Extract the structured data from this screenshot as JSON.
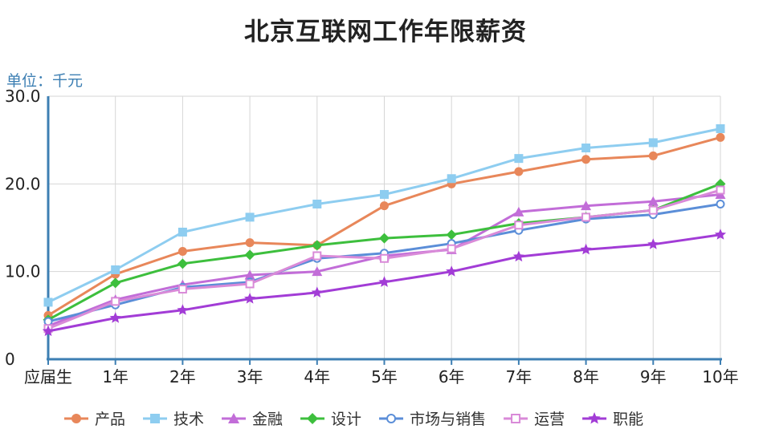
{
  "chart_data": {
    "type": "line",
    "title": "北京互联网工作年限薪资",
    "unit_label": "单位：千元",
    "categories": [
      "应届生",
      "1年",
      "2年",
      "3年",
      "4年",
      "5年",
      "6年",
      "7年",
      "8年",
      "9年",
      "10年"
    ],
    "y_ticks": [
      "0",
      "10.0",
      "20.0",
      "30.0"
    ],
    "ylim": [
      0,
      30
    ],
    "grid": true,
    "legend_position": "bottom",
    "series": [
      {
        "name": "产品",
        "color": "#e8875a",
        "marker": "circle",
        "values": [
          5.0,
          9.7,
          12.3,
          13.3,
          13.0,
          17.5,
          20.0,
          21.4,
          22.8,
          23.2,
          25.3
        ]
      },
      {
        "name": "技术",
        "color": "#8ecdf0",
        "marker": "square",
        "values": [
          6.5,
          10.2,
          14.5,
          16.2,
          17.7,
          18.8,
          20.6,
          22.9,
          24.1,
          24.7,
          26.3
        ]
      },
      {
        "name": "金融",
        "color": "#c26dd8",
        "marker": "triangle",
        "values": [
          3.8,
          6.8,
          8.5,
          9.6,
          10.0,
          11.8,
          12.5,
          16.8,
          17.5,
          18.0,
          18.8
        ]
      },
      {
        "name": "设计",
        "color": "#3dbf3d",
        "marker": "diamond",
        "values": [
          4.5,
          8.7,
          10.9,
          11.9,
          13.0,
          13.8,
          14.2,
          15.5,
          16.2,
          17.0,
          20.0
        ]
      },
      {
        "name": "市场与销售",
        "color": "#5b8ed8",
        "marker": "circle-open",
        "values": [
          4.3,
          6.2,
          8.2,
          8.8,
          11.5,
          12.1,
          13.2,
          14.7,
          16.0,
          16.5,
          17.7
        ]
      },
      {
        "name": "运营",
        "color": "#d98ad8",
        "marker": "square-open",
        "values": [
          3.5,
          6.6,
          8.0,
          8.6,
          11.8,
          11.5,
          12.6,
          15.3,
          16.2,
          17.0,
          19.3
        ]
      },
      {
        "name": "职能",
        "color": "#a23cd6",
        "marker": "star",
        "values": [
          3.2,
          4.7,
          5.6,
          6.9,
          7.6,
          8.8,
          10.0,
          11.7,
          12.5,
          13.1,
          14.2
        ]
      }
    ]
  }
}
